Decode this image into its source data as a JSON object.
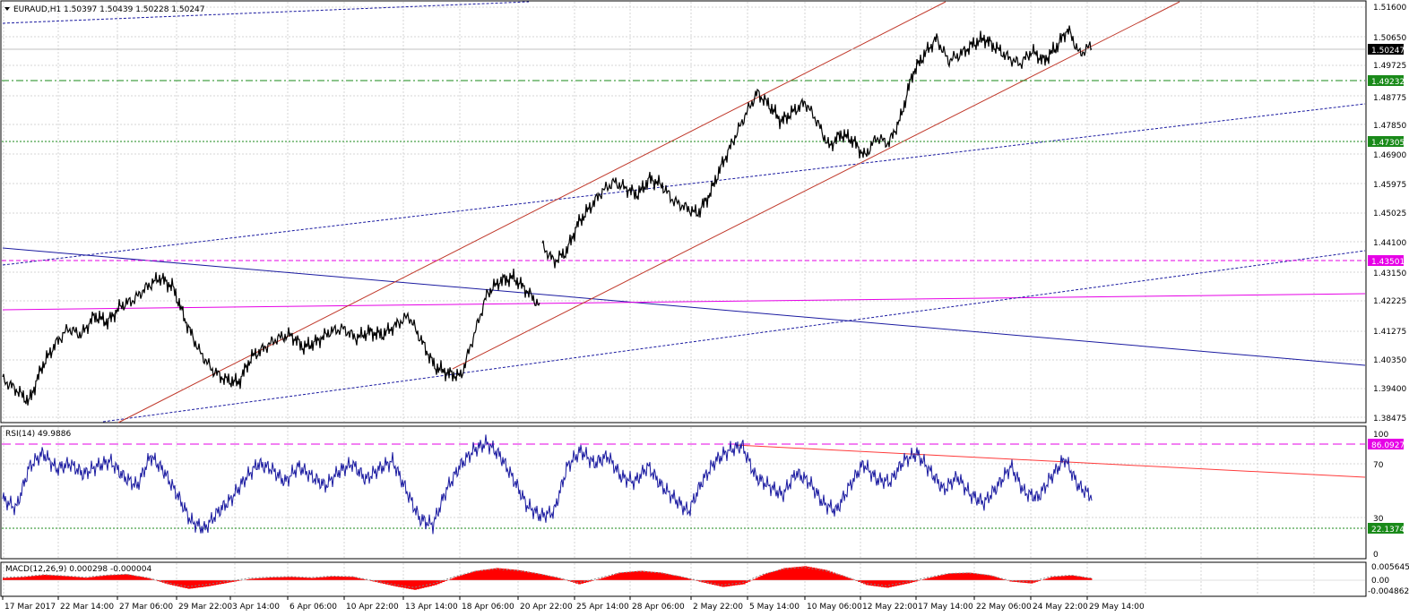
{
  "symbol_header": "EURAUD,H1  1.50397 1.50439 1.50228 1.50247",
  "rsi_header": "RSI(14) 49.9886",
  "macd_header": "MACD(12,26,9) 0.000298 -0.000004",
  "colors": {
    "price": "#000000",
    "grid": "#c0c0c0",
    "channel": "#c0392b",
    "blue_trend": "#1a1aa0",
    "magenta": "#e600e6",
    "level_green": "#1a8a1a",
    "rsi_line": "#1a1aa0",
    "rsi_trend": "#ff3b3b",
    "macd_hist": "#ff0000"
  },
  "chart_data": [
    {
      "type": "line",
      "panel": "price",
      "title": "EURAUD,H1",
      "values_header": [
        "1.50397",
        "1.50439",
        "1.50228",
        "1.50247"
      ],
      "ylim": [
        1.3845,
        1.5165
      ],
      "y_ticks": [
        "1.51600",
        "1.50650",
        "1.49725",
        "1.48775",
        "1.47850",
        "1.46900",
        "1.45975",
        "1.45025",
        "1.44100",
        "1.43150",
        "1.42225",
        "1.41275",
        "1.40350",
        "1.39400",
        "1.38475"
      ],
      "x_ticks": [
        "17 Mar 2017",
        "22 Mar 14:00",
        "27 Mar 06:00",
        "29 Mar 22:00",
        "3 Apr 14:00",
        "6 Apr 06:00",
        "10 Apr 22:00",
        "13 Apr 14:00",
        "18 Apr 06:00",
        "20 Apr 22:00",
        "25 Apr 14:00",
        "28 Apr 06:00",
        "2 May 22:00",
        "5 May 14:00",
        "10 May 06:00",
        "12 May 22:00",
        "17 May 14:00",
        "22 May 06:00",
        "24 May 22:00",
        "29 May 14:00"
      ],
      "series": [
        {
          "values": [
            1.398,
            1.395,
            1.391,
            1.402,
            1.409,
            1.414,
            1.412,
            1.418,
            1.416,
            1.421,
            1.423,
            1.427,
            1.43,
            1.427,
            1.416,
            1.407,
            1.401,
            1.398,
            1.397,
            1.405,
            1.408,
            1.411,
            1.412,
            1.408,
            1.41,
            1.413,
            1.414,
            1.411,
            1.413,
            1.412,
            1.415,
            1.418,
            1.41,
            1.402,
            1.4,
            1.399,
            1.412,
            1.425,
            1.429,
            1.43,
            1.426,
            1.421
          ],
          "segment_2": [
            1.44,
            1.435,
            1.438,
            1.447,
            1.452,
            1.457,
            1.46,
            1.458,
            1.456,
            1.461,
            1.459,
            1.454,
            1.452,
            1.45,
            1.456,
            1.465,
            1.473,
            1.481,
            1.488,
            1.484,
            1.479,
            1.482,
            1.485,
            1.479,
            1.471,
            1.475,
            1.473,
            1.468,
            1.474,
            1.472,
            1.48,
            1.494,
            1.5,
            1.505,
            1.498,
            1.5,
            1.503,
            1.505,
            1.502,
            1.499,
            1.497,
            1.501,
            1.498,
            1.502,
            1.508,
            1.5,
            1.503
          ]
        }
      ],
      "horizontal_levels": [
        {
          "label": "1.50247",
          "value": 1.50247,
          "style": "current"
        },
        {
          "label": "1.49232",
          "value": 1.49232,
          "style": "green-dashdot"
        },
        {
          "label": "1.47305",
          "value": 1.47305,
          "style": "green-dotted"
        },
        {
          "label": "1.43501",
          "value": 1.43501,
          "style": "magenta-dashed"
        }
      ]
    },
    {
      "type": "line",
      "panel": "rsi",
      "title": "RSI(14)",
      "current_value": "49.9886",
      "ylim": [
        0,
        100
      ],
      "y_ticks": [
        "100",
        "70",
        "30",
        "0"
      ],
      "levels": [
        {
          "label": "86.0927",
          "value": 86.0927
        },
        {
          "label": "22.1374",
          "value": 22.1374
        }
      ],
      "values": [
        45,
        38,
        70,
        80,
        68,
        72,
        64,
        70,
        74,
        62,
        55,
        78,
        66,
        48,
        28,
        22,
        35,
        45,
        60,
        72,
        68,
        58,
        70,
        62,
        55,
        66,
        72,
        60,
        68,
        74,
        52,
        30,
        25,
        52,
        70,
        82,
        88,
        78,
        60,
        40,
        32,
        35,
        70,
        82,
        72,
        78,
        62,
        58,
        70,
        55,
        45,
        35,
        58,
        74,
        82,
        86,
        62,
        55,
        48,
        65,
        58,
        42,
        36,
        55,
        72,
        60,
        58,
        74,
        80,
        66,
        52,
        62,
        48,
        42,
        55,
        70,
        50,
        46,
        62,
        76,
        55,
        47
      ]
    },
    {
      "type": "bar",
      "panel": "macd",
      "title": "MACD(12,26,9)",
      "main_value": "0.000298",
      "signal_value": "-0.000004",
      "y_ticks": [
        "0.005645",
        "0.00",
        "-0.004862"
      ],
      "ylim": [
        -0.004862,
        0.005645
      ],
      "values": [
        0.0008,
        0.0012,
        0.002,
        0.0015,
        0.0009,
        0.0018,
        0.0022,
        0.0008,
        -0.0015,
        -0.0032,
        -0.0022,
        -0.0008,
        0.0005,
        0.001,
        0.0012,
        0.0008,
        0.0014,
        0.0012,
        -0.0005,
        -0.0022,
        -0.0036,
        -0.0018,
        0.0012,
        0.0035,
        0.0045,
        0.0038,
        0.0025,
        0.0008,
        -0.0015,
        0.0005,
        0.0028,
        0.0035,
        0.0028,
        0.0012,
        -0.0008,
        -0.0025,
        -0.0015,
        0.0022,
        0.0045,
        0.0052,
        0.0038,
        0.0012,
        -0.0018,
        -0.0028,
        -0.0012,
        0.0008,
        0.0025,
        0.0028,
        0.0018,
        -0.0005,
        -0.0012,
        0.0012,
        0.0018,
        0.0005
      ]
    }
  ]
}
